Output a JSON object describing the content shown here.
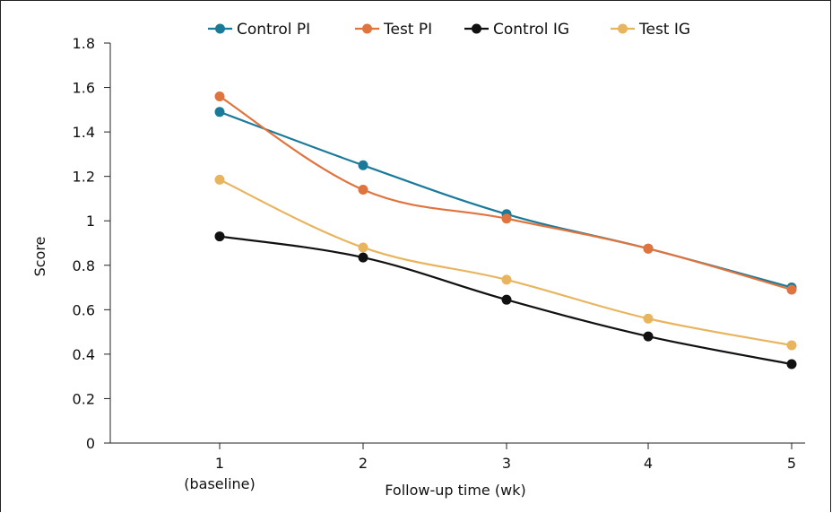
{
  "chart_data": {
    "type": "line",
    "xlabel": "Follow-up time (wk)",
    "ylabel": "Score",
    "categories": [
      "1\n(baseline)",
      "2",
      "3",
      "4",
      "5"
    ],
    "x": [
      1,
      2,
      3,
      4,
      5
    ],
    "ylim": [
      0,
      1.8
    ],
    "yticks": [
      "0",
      "0.2",
      "0.4",
      "0.6",
      "0.8",
      "1",
      "1.2",
      "1.4",
      "1.6",
      "1.8"
    ],
    "ytick_values": [
      0,
      0.2,
      0.4,
      0.6,
      0.8,
      1.0,
      1.2,
      1.4,
      1.6,
      1.8
    ],
    "grid": false,
    "legend_position": "top",
    "series": [
      {
        "name": "Control PI",
        "color": "#1b7a99",
        "values": [
          1.49,
          1.25,
          1.03,
          0.875,
          0.7
        ]
      },
      {
        "name": "Test PI",
        "color": "#e0743f",
        "values": [
          1.56,
          1.14,
          1.01,
          0.875,
          0.69
        ]
      },
      {
        "name": "Control IG",
        "color": "#111111",
        "values": [
          0.93,
          0.835,
          0.645,
          0.48,
          0.355
        ]
      },
      {
        "name": "Test IG",
        "color": "#e8b55e",
        "values": [
          1.185,
          0.88,
          0.735,
          0.56,
          0.44
        ]
      }
    ]
  }
}
